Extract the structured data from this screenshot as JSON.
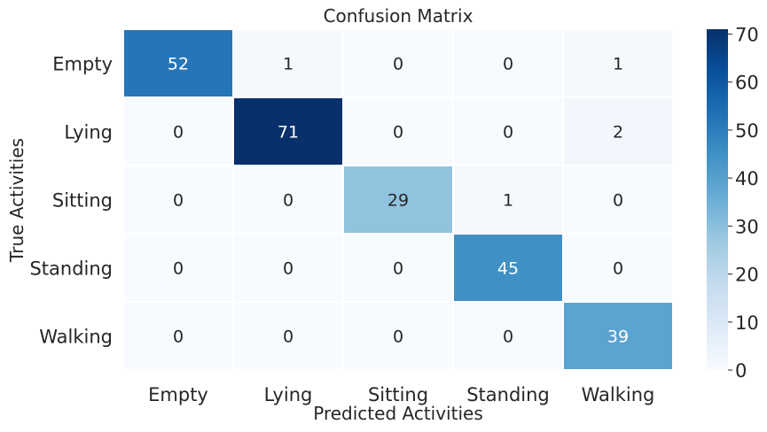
{
  "chart_data": {
    "type": "heatmap",
    "title": "Confusion Matrix",
    "xlabel": "Predicted Activities",
    "ylabel": "True Activities",
    "x_categories": [
      "Empty",
      "Lying",
      "Sitting",
      "Standing",
      "Walking"
    ],
    "y_categories": [
      "Empty",
      "Lying",
      "Sitting",
      "Standing",
      "Walking"
    ],
    "values": [
      [
        52,
        1,
        0,
        0,
        1
      ],
      [
        0,
        71,
        0,
        0,
        2
      ],
      [
        0,
        0,
        29,
        1,
        0
      ],
      [
        0,
        0,
        0,
        45,
        0
      ],
      [
        0,
        0,
        0,
        0,
        39
      ]
    ],
    "colormap": "Blues",
    "vmin": 0,
    "vmax": 71,
    "colorbar_ticks": [
      "0",
      "10",
      "20",
      "30",
      "40",
      "50",
      "60",
      "70"
    ],
    "colorbar_tick_values": [
      0,
      10,
      20,
      30,
      40,
      50,
      60,
      70
    ]
  }
}
